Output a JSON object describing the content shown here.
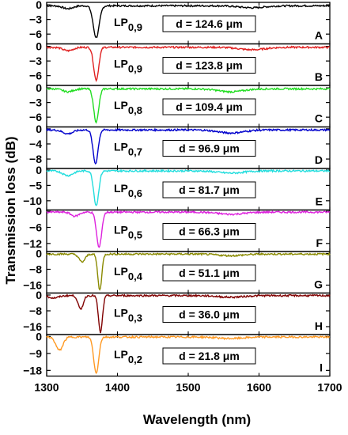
{
  "chart_data": {
    "type": "line",
    "xlabel": "Wavelength (nm)",
    "ylabel": "Transmission loss (dB)",
    "xlim": [
      1300,
      1700
    ],
    "x_ticks": [
      "1300",
      "1400",
      "1500",
      "1600",
      "1700"
    ],
    "panels": [
      {
        "letter": "A",
        "mode": "0,9",
        "d_label": "d = 124.6 μm",
        "color": "#000000",
        "ylim": [
          -8,
          0.5
        ],
        "y_ticks": [
          0,
          -3,
          -6
        ],
        "baseline": -0.2,
        "dip_center": 1370,
        "dip_depth": -6.7,
        "dip_width": 6,
        "side_dips": [
          [
            1330,
            -0.6,
            10
          ],
          [
            1590,
            -0.4,
            25
          ]
        ]
      },
      {
        "letter": "B",
        "mode": "0,9",
        "d_label": "d = 123.8 μm",
        "color": "#e02020",
        "ylim": [
          -8,
          0.5
        ],
        "y_ticks": [
          0,
          -3,
          -6
        ],
        "baseline": -0.2,
        "dip_center": 1370,
        "dip_depth": -6.9,
        "dip_width": 5,
        "side_dips": [
          [
            1330,
            -0.7,
            10
          ],
          [
            1590,
            -0.5,
            25
          ]
        ]
      },
      {
        "letter": "C",
        "mode": "0,8",
        "d_label": "d = 109.4 μm",
        "color": "#22dd22",
        "ylim": [
          -8,
          0.5
        ],
        "y_ticks": [
          0,
          -3,
          -6
        ],
        "baseline": -0.2,
        "dip_center": 1370,
        "dip_depth": -7.0,
        "dip_width": 5,
        "side_dips": [
          [
            1330,
            -0.6,
            10
          ],
          [
            1560,
            -0.6,
            25
          ]
        ]
      },
      {
        "letter": "D",
        "mode": "0,7",
        "d_label": "d = 96.9 μm",
        "color": "#0000cc",
        "ylim": [
          -10.5,
          0.5
        ],
        "y_ticks": [
          0,
          -4,
          -8
        ],
        "baseline": -0.3,
        "dip_center": 1369,
        "dip_depth": -9.2,
        "dip_width": 5,
        "side_dips": [
          [
            1330,
            -1.0,
            10
          ],
          [
            1560,
            -0.8,
            25
          ]
        ]
      },
      {
        "letter": "E",
        "mode": "0,6",
        "d_label": "d = 81.7 μm",
        "color": "#22dddd",
        "ylim": [
          -13,
          0.5
        ],
        "y_ticks": [
          0,
          -5,
          -10
        ],
        "baseline": -0.3,
        "dip_center": 1370,
        "dip_depth": -11.5,
        "dip_width": 5,
        "side_dips": [
          [
            1330,
            -1.5,
            10
          ],
          [
            1560,
            -0.7,
            25
          ]
        ]
      },
      {
        "letter": "F",
        "mode": "0,5",
        "d_label": "d = 66.3 μm",
        "color": "#dd22dd",
        "ylim": [
          -15,
          0.5
        ],
        "y_ticks": [
          0,
          -6,
          -12
        ],
        "baseline": -0.3,
        "dip_center": 1374,
        "dip_depth": -13.5,
        "dip_width": 5,
        "side_dips": [
          [
            1340,
            -1.5,
            8
          ],
          [
            1560,
            -0.8,
            25
          ]
        ]
      },
      {
        "letter": "G",
        "mode": "0,4",
        "d_label": "d = 51.1 μm",
        "color": "#8a8a00",
        "ylim": [
          -20,
          1
        ],
        "y_ticks": [
          0,
          -8,
          -16
        ],
        "baseline": -0.3,
        "dip_center": 1375,
        "dip_depth": -18.5,
        "dip_width": 4,
        "side_dips": [
          [
            1350,
            -4.0,
            6
          ],
          [
            1560,
            -0.8,
            25
          ]
        ]
      },
      {
        "letter": "H",
        "mode": "0,3",
        "d_label": "d = 36.0 μm",
        "color": "#800000",
        "ylim": [
          -20,
          1
        ],
        "y_ticks": [
          0,
          -8,
          -16
        ],
        "baseline": -0.3,
        "dip_center": 1376,
        "dip_depth": -19.0,
        "dip_width": 4,
        "side_dips": [
          [
            1348,
            -7.0,
            5
          ],
          [
            1310,
            -1.2,
            10
          ],
          [
            1560,
            -0.8,
            25
          ]
        ]
      },
      {
        "letter": "I",
        "mode": "0,2",
        "d_label": "d = 21.8 μm",
        "color": "#ff9922",
        "ylim": [
          -21,
          1
        ],
        "y_ticks": [
          0,
          -9,
          -18
        ],
        "baseline": -0.3,
        "dip_center": 1370,
        "dip_depth": -19.5,
        "dip_width": 5,
        "side_dips": [
          [
            1318,
            -7.0,
            7
          ],
          [
            1560,
            -0.8,
            25
          ]
        ]
      }
    ]
  }
}
